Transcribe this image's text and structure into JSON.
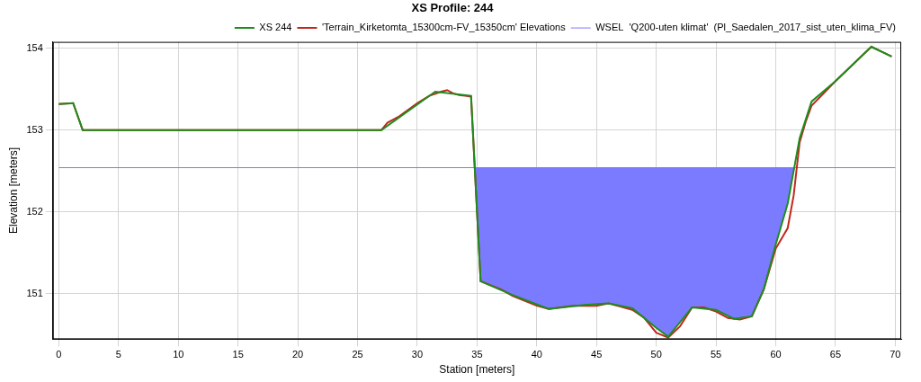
{
  "chart_data": {
    "type": "line",
    "title": "XS Profile: 244",
    "x_label": "Station [meters]",
    "y_label": "Elevation [meters]",
    "xlim": [
      -0.5,
      70.5
    ],
    "xticks": [
      0,
      5,
      10,
      15,
      20,
      25,
      30,
      35,
      40,
      45,
      50,
      55,
      60,
      65,
      70
    ],
    "ylim": [
      150.44,
      154.08
    ],
    "yticks": [
      151,
      152,
      153,
      154
    ],
    "grid": true,
    "legend": "upper right",
    "series": [
      {
        "name": "WSEL  'Q200-uten klimat'  (Pl_Saedalen_2017_sist_uten_klima_FV)",
        "color": "#7b7bff",
        "marker": "none",
        "line_style": "solid",
        "x": [
          0,
          70
        ],
        "values": [
          152.54,
          152.54
        ]
      },
      {
        "name": "'Terrain_Kirketomta_15300cm-FV_15350cm' Elevations",
        "color": "#c0281e",
        "marker": "none",
        "line_style": "solid",
        "x": [
          0,
          1.2,
          2,
          27,
          27.5,
          28.5,
          30,
          31,
          32,
          32.5,
          33,
          33.5,
          34,
          34.5,
          35.3,
          37,
          38,
          40,
          41,
          43,
          45,
          46,
          47,
          48,
          49,
          50,
          51,
          52,
          53,
          54,
          55,
          56,
          57,
          58,
          59,
          60,
          61,
          61.5,
          62,
          62.5,
          63,
          65,
          68,
          69,
          69.7
        ],
        "values": [
          153.32,
          153.33,
          153.0,
          153.0,
          153.09,
          153.17,
          153.33,
          153.42,
          153.47,
          153.49,
          153.45,
          153.43,
          153.42,
          153.41,
          151.15,
          151.05,
          150.97,
          150.85,
          150.81,
          150.85,
          150.85,
          150.88,
          150.84,
          150.8,
          150.7,
          150.52,
          150.46,
          150.6,
          150.83,
          150.83,
          150.78,
          150.7,
          150.68,
          150.72,
          151.05,
          151.55,
          151.8,
          152.2,
          152.85,
          153.1,
          153.3,
          153.6,
          154.02,
          153.95,
          153.9
        ]
      },
      {
        "name": "XS 244",
        "color": "#1e8c1e",
        "marker": "none",
        "line_style": "solid",
        "x": [
          0,
          1.2,
          2,
          27,
          31.5,
          34.5,
          35.3,
          38,
          41,
          44,
          46,
          48,
          50,
          51,
          53,
          55,
          56.5,
          58,
          59,
          60,
          61,
          62,
          63,
          65,
          68,
          69,
          69.7
        ],
        "values": [
          153.32,
          153.33,
          153.0,
          153.0,
          153.47,
          153.42,
          151.15,
          150.98,
          150.81,
          150.86,
          150.88,
          150.82,
          150.58,
          150.47,
          150.83,
          150.8,
          150.69,
          150.72,
          151.05,
          151.6,
          152.1,
          152.9,
          153.35,
          153.6,
          154.02,
          153.95,
          153.9
        ]
      }
    ]
  }
}
